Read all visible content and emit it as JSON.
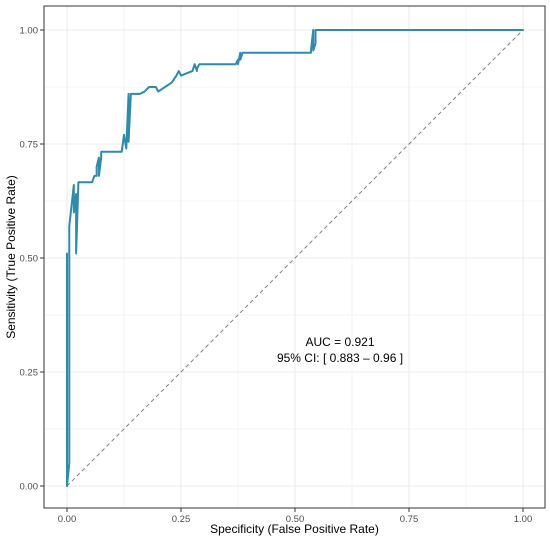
{
  "chart_data": {
    "type": "line",
    "title": "",
    "xlabel": "Specificity (False Positive Rate)",
    "ylabel": "Sensitivity (True Positive Rate)",
    "xlim": [
      0,
      1
    ],
    "ylim": [
      0,
      1
    ],
    "x_ticks": [
      0,
      0.25,
      0.5,
      0.75,
      1
    ],
    "y_ticks": [
      0,
      0.25,
      0.5,
      0.75,
      1
    ],
    "x_tick_labels": [
      "0.00",
      "0.25",
      "0.50",
      "0.75",
      "1.00"
    ],
    "y_tick_labels": [
      "0.00",
      "0.25",
      "0.50",
      "0.75",
      "1.00"
    ],
    "grid": true,
    "legend": "none",
    "series": [
      {
        "color": "#2b8cad",
        "x": [
          0,
          0,
          0,
          0.005,
          0.005,
          0.005,
          0.01,
          0.015,
          0.015,
          0.02,
          0.02,
          0.025,
          0.025,
          0.055,
          0.06,
          0.065,
          0.065,
          0.07,
          0.07,
          0.075,
          0.075,
          0.085,
          0.085,
          0.12,
          0.125,
          0.13,
          0.13,
          0.135,
          0.135,
          0.14,
          0.14,
          0.16,
          0.17,
          0.18,
          0.195,
          0.2,
          0.2,
          0.215,
          0.23,
          0.24,
          0.245,
          0.25,
          0.275,
          0.28,
          0.285,
          0.285,
          0.29,
          0.29,
          0.37,
          0.375,
          0.375,
          0.38,
          0.38,
          0.385,
          0.385,
          0.535,
          0.535,
          0.54,
          0.54,
          0.545,
          0.545,
          1.0
        ],
        "y": [
          0,
          0.51,
          0,
          0.05,
          0.53,
          0.57,
          0.615,
          0.66,
          0.6,
          0.64,
          0.51,
          0.666,
          0.666,
          0.666,
          0.68,
          0.68,
          0.7,
          0.72,
          0.68,
          0.72,
          0.733,
          0.733,
          0.733,
          0.733,
          0.77,
          0.74,
          0.74,
          0.86,
          0.755,
          0.86,
          0.86,
          0.86,
          0.865,
          0.875,
          0.875,
          0.865,
          0.865,
          0.875,
          0.885,
          0.9,
          0.91,
          0.9,
          0.91,
          0.925,
          0.91,
          0.915,
          0.925,
          0.925,
          0.925,
          0.935,
          0.925,
          0.95,
          0.935,
          0.95,
          0.95,
          0.95,
          0.955,
          1.0,
          0.955,
          0.97,
          1.0,
          1.0
        ]
      }
    ],
    "reference_line": {
      "x": [
        0,
        1
      ],
      "y": [
        0,
        1
      ],
      "style": "dashed",
      "color": "#808080"
    },
    "annotations": [
      "AUC = 0.921",
      "95% CI: [ 0.883 – 0.96 ]"
    ]
  }
}
